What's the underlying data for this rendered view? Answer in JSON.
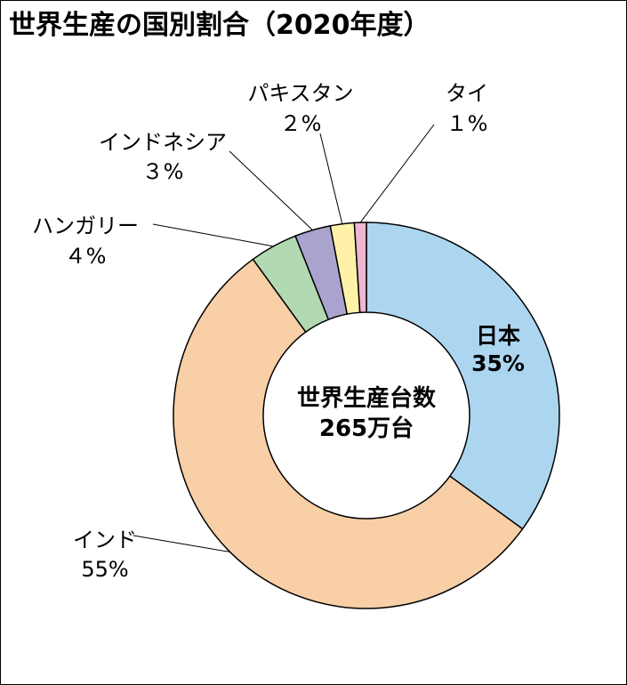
{
  "chart_data": {
    "type": "pie",
    "donut": true,
    "title": "世界生産の国別割合（2020年度）",
    "center_label_line1": "世界生産台数",
    "center_label_line2": "265万台",
    "slices": [
      {
        "name": "日本",
        "value_label": "35%",
        "value": 35,
        "color": "#acd6f0"
      },
      {
        "name": "インド",
        "value_label": "55%",
        "value": 55,
        "color": "#f8cfa6"
      },
      {
        "name": "ハンガリー",
        "value_label": "４%",
        "value": 4,
        "color": "#b2d9b2"
      },
      {
        "name": "インドネシア",
        "value_label": "３%",
        "value": 3,
        "color": "#a9a3cd"
      },
      {
        "name": "パキスタン",
        "value_label": "２%",
        "value": 2,
        "color": "#fff2a8"
      },
      {
        "name": "タイ",
        "value_label": "１%",
        "value": 1,
        "color": "#efb6d2"
      }
    ]
  }
}
